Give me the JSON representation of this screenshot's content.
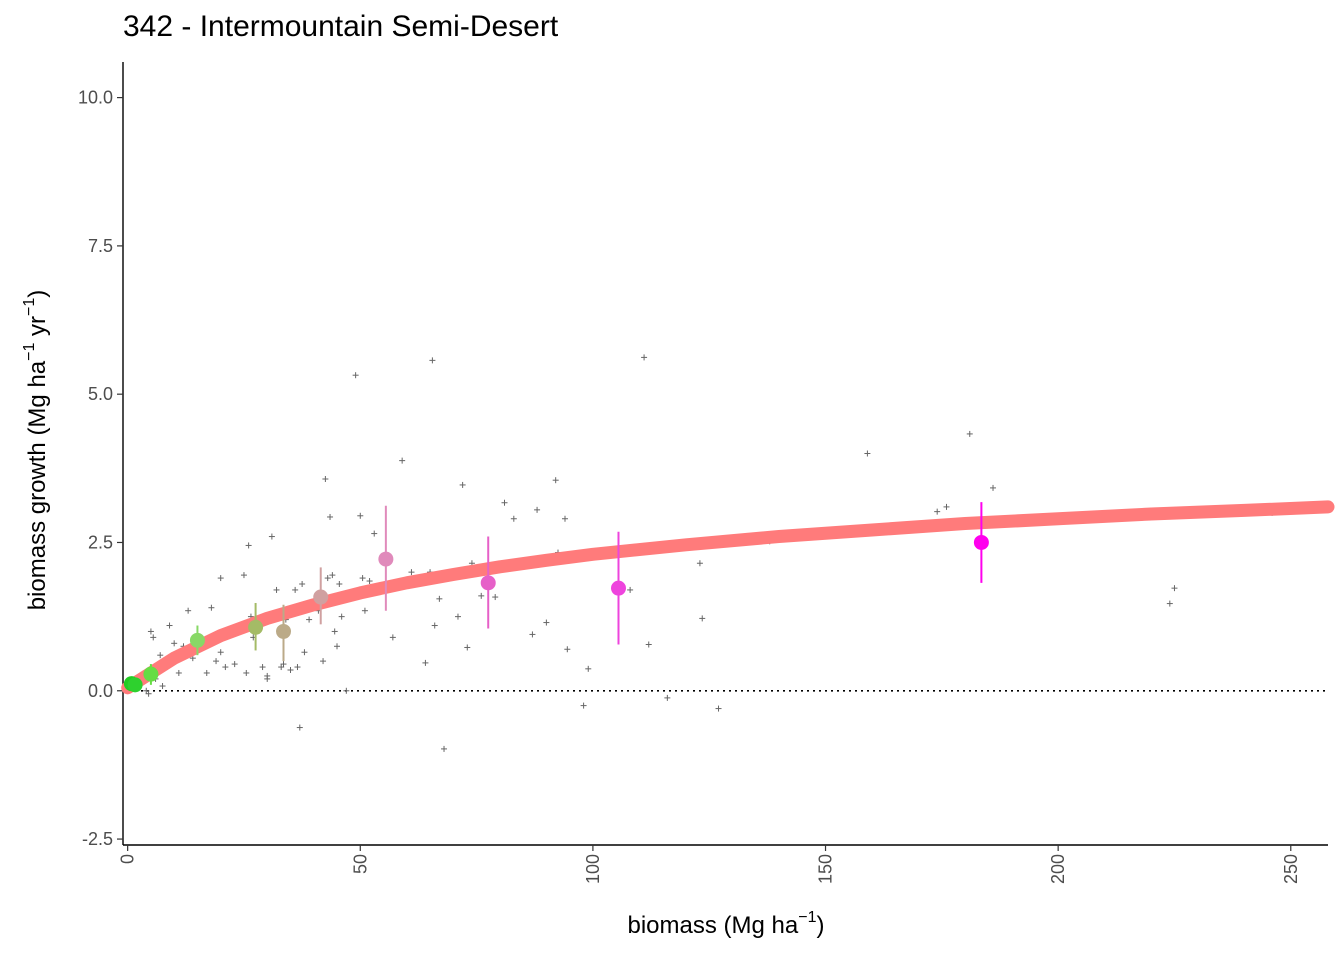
{
  "title": "342 - Intermountain Semi-Desert",
  "chart_data": {
    "type": "scatter",
    "title": "342 - Intermountain Semi-Desert",
    "xlabel": "biomass (Mg ha−1)",
    "ylabel": "biomass growth (Mg ha−1 yr−1)",
    "axis_labels": {
      "x_main": "biomass (Mg ha",
      "x_sup": "−1",
      "x_end": ")",
      "y_main": "biomass growth (Mg ha",
      "y_sup1": "−1",
      "y_mid": " yr",
      "y_sup2": "−1",
      "y_end": ")"
    },
    "xlim": [
      -1,
      258
    ],
    "ylim": [
      -2.6,
      10.6
    ],
    "x_ticks": [
      0,
      50,
      100,
      150,
      200,
      250
    ],
    "x_tick_labels": [
      "0",
      "50",
      "100",
      "150",
      "200",
      "250"
    ],
    "y_ticks": [
      -2.5,
      0,
      2.5,
      5,
      7.5,
      10
    ],
    "y_tick_labels": [
      "-2.5",
      "0.0",
      "2.5",
      "5.0",
      "7.5",
      "10.0"
    ],
    "grid": false,
    "reference_line": {
      "y": 0,
      "style": "dotted",
      "color": "#000000"
    },
    "fit_curve": {
      "color": "#FF7B7B",
      "points": [
        [
          0,
          0.05
        ],
        [
          10,
          0.55
        ],
        [
          20,
          0.93
        ],
        [
          30,
          1.22
        ],
        [
          40,
          1.45
        ],
        [
          50,
          1.65
        ],
        [
          60,
          1.82
        ],
        [
          70,
          1.96
        ],
        [
          80,
          2.09
        ],
        [
          90,
          2.2
        ],
        [
          100,
          2.3
        ],
        [
          120,
          2.46
        ],
        [
          140,
          2.6
        ],
        [
          160,
          2.71
        ],
        [
          180,
          2.82
        ],
        [
          200,
          2.9
        ],
        [
          220,
          2.98
        ],
        [
          240,
          3.04
        ],
        [
          258,
          3.1
        ]
      ]
    },
    "binned_means": [
      {
        "x": 0.8,
        "y": 0.12,
        "lo": 0.05,
        "hi": 0.2,
        "color": "#22CC22"
      },
      {
        "x": 1.6,
        "y": 0.1,
        "lo": 0.02,
        "hi": 0.18,
        "color": "#2ED12E"
      },
      {
        "x": 5.0,
        "y": 0.28,
        "lo": 0.1,
        "hi": 0.45,
        "color": "#66DD44"
      },
      {
        "x": 15.0,
        "y": 0.85,
        "lo": 0.6,
        "hi": 1.1,
        "color": "#88D866"
      },
      {
        "x": 27.5,
        "y": 1.07,
        "lo": 0.68,
        "hi": 1.48,
        "color": "#A4BB66"
      },
      {
        "x": 33.5,
        "y": 1.0,
        "lo": 0.5,
        "hi": 1.45,
        "color": "#BBAA88"
      },
      {
        "x": 41.5,
        "y": 1.58,
        "lo": 1.12,
        "hi": 2.08,
        "color": "#D0A0A0"
      },
      {
        "x": 55.5,
        "y": 2.22,
        "lo": 1.35,
        "hi": 3.12,
        "color": "#E08ABB"
      },
      {
        "x": 77.5,
        "y": 1.82,
        "lo": 1.05,
        "hi": 2.6,
        "color": "#E660C8"
      },
      {
        "x": 105.5,
        "y": 1.73,
        "lo": 0.78,
        "hi": 2.68,
        "color": "#EE44DD"
      },
      {
        "x": 183.5,
        "y": 2.5,
        "lo": 1.82,
        "hi": 3.18,
        "color": "#FF00EE"
      }
    ],
    "observations": [
      [
        1,
        0.05
      ],
      [
        2,
        0.1
      ],
      [
        3,
        0.15
      ],
      [
        4,
        0.0
      ],
      [
        4.5,
        -0.05
      ],
      [
        5,
        1.0
      ],
      [
        5.5,
        0.9
      ],
      [
        6,
        0.2
      ],
      [
        7,
        0.6
      ],
      [
        7.5,
        0.08
      ],
      [
        9,
        1.1
      ],
      [
        10,
        0.8
      ],
      [
        11,
        0.3
      ],
      [
        13,
        1.35
      ],
      [
        14,
        0.55
      ],
      [
        15,
        0.9
      ],
      [
        17,
        0.3
      ],
      [
        18,
        1.4
      ],
      [
        19,
        0.5
      ],
      [
        20,
        1.9
      ],
      [
        21,
        0.4
      ],
      [
        22,
        0.95
      ],
      [
        23,
        0.45
      ],
      [
        24,
        1.0
      ],
      [
        25,
        1.95
      ],
      [
        25.5,
        0.3
      ],
      [
        26,
        2.45
      ],
      [
        26.5,
        1.25
      ],
      [
        27,
        0.9
      ],
      [
        28,
        1.1
      ],
      [
        29,
        0.4
      ],
      [
        30,
        0.25
      ],
      [
        31,
        2.6
      ],
      [
        32,
        1.7
      ],
      [
        33,
        0.4
      ],
      [
        33.5,
        0.45
      ],
      [
        34,
        1.2
      ],
      [
        36,
        1.7
      ],
      [
        36.5,
        0.4
      ],
      [
        37,
        -0.62
      ],
      [
        37.5,
        1.8
      ],
      [
        38,
        0.65
      ],
      [
        39,
        1.2
      ],
      [
        40,
        1.4
      ],
      [
        41,
        1.35
      ],
      [
        42,
        0.5
      ],
      [
        42.5,
        3.57
      ],
      [
        43,
        1.9
      ],
      [
        43.5,
        2.93
      ],
      [
        44,
        1.95
      ],
      [
        44.5,
        1.0
      ],
      [
        45,
        0.75
      ],
      [
        45.5,
        1.8
      ],
      [
        46,
        1.25
      ],
      [
        49,
        5.32
      ],
      [
        50,
        2.95
      ],
      [
        50.5,
        1.9
      ],
      [
        51,
        1.35
      ],
      [
        52,
        1.85
      ],
      [
        53,
        2.65
      ],
      [
        57,
        0.9
      ],
      [
        59,
        3.88
      ],
      [
        61,
        2.0
      ],
      [
        64,
        0.47
      ],
      [
        65.5,
        5.57
      ],
      [
        66,
        1.1
      ],
      [
        67,
        1.55
      ],
      [
        68,
        -0.98
      ],
      [
        71,
        1.25
      ],
      [
        72,
        3.47
      ],
      [
        73,
        0.73
      ],
      [
        74,
        2.15
      ],
      [
        76,
        1.6
      ],
      [
        79,
        1.58
      ],
      [
        81,
        3.17
      ],
      [
        83,
        2.9
      ],
      [
        87,
        0.95
      ],
      [
        88,
        3.05
      ],
      [
        90,
        1.15
      ],
      [
        92,
        3.55
      ],
      [
        92.5,
        2.33
      ],
      [
        94,
        2.9
      ],
      [
        94.5,
        0.7
      ],
      [
        98,
        -0.25
      ],
      [
        99,
        0.37
      ],
      [
        108,
        1.7
      ],
      [
        111,
        5.62
      ],
      [
        112,
        0.78
      ],
      [
        116,
        -0.12
      ],
      [
        123,
        2.15
      ],
      [
        123.5,
        1.22
      ],
      [
        127,
        -0.3
      ],
      [
        138,
        2.52
      ],
      [
        159,
        4.0
      ],
      [
        174,
        3.02
      ],
      [
        176,
        3.1
      ],
      [
        181,
        4.33
      ],
      [
        186,
        3.42
      ],
      [
        224,
        1.47
      ],
      [
        225,
        1.73
      ],
      [
        246,
        3.0
      ],
      [
        155,
        2.7
      ],
      [
        75,
        2.05
      ],
      [
        84,
        2.1
      ],
      [
        65,
        2.0
      ],
      [
        47,
        0.0
      ],
      [
        35,
        0.35
      ],
      [
        30,
        0.2
      ],
      [
        12,
        0.75
      ],
      [
        20,
        0.65
      ]
    ]
  }
}
